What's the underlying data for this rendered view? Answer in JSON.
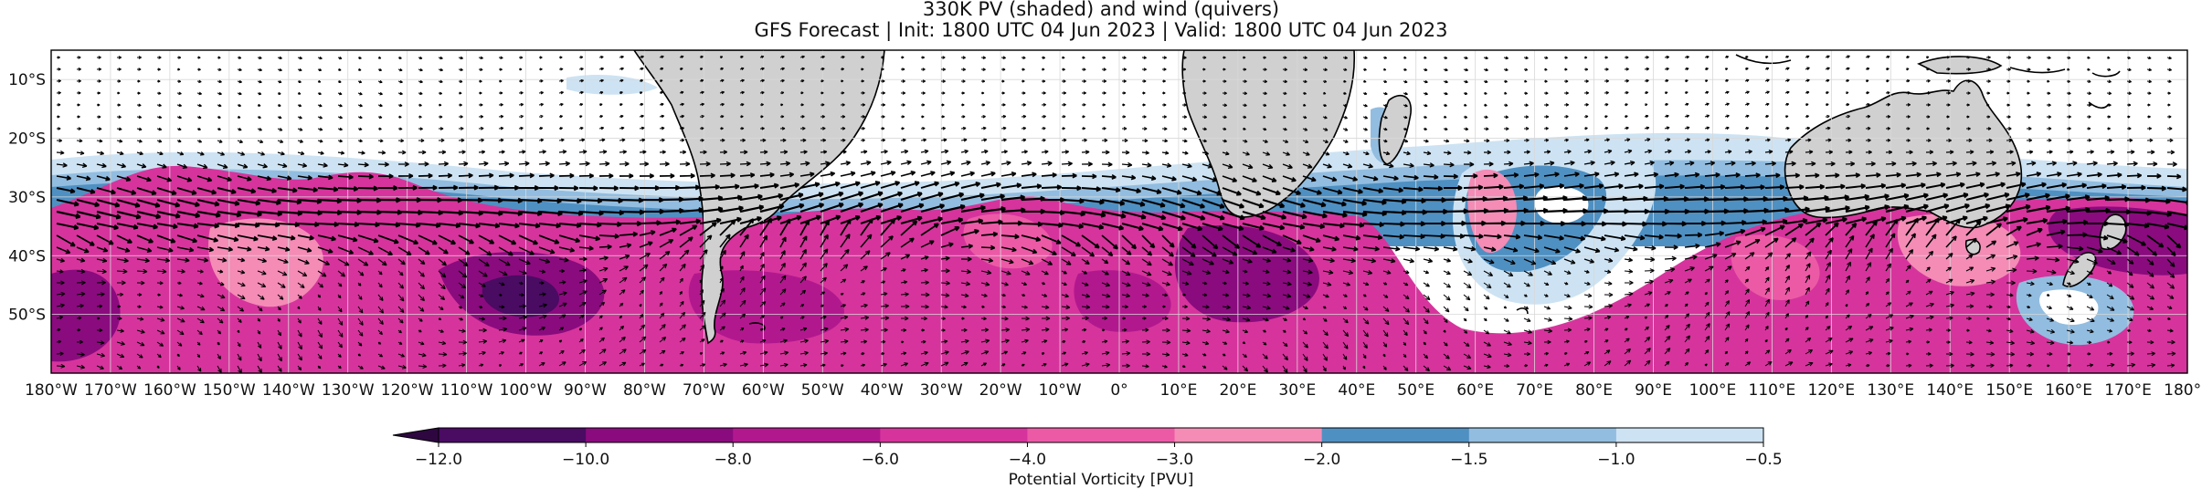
{
  "title": "330K PV (shaded) and wind (quivers)",
  "subtitle": "GFS Forecast | Init: 1800 UTC 04 Jun 2023 | Valid: 1800 UTC 04 Jun 2023",
  "map": {
    "lon_range": [
      -180,
      180
    ],
    "lat_range": [
      -60,
      -5
    ],
    "lon_ticks": [
      "180°W",
      "170°W",
      "160°W",
      "150°W",
      "140°W",
      "130°W",
      "120°W",
      "110°W",
      "100°W",
      "90°W",
      "80°W",
      "70°W",
      "60°W",
      "50°W",
      "40°W",
      "30°W",
      "20°W",
      "10°W",
      "0°",
      "10°E",
      "20°E",
      "30°E",
      "40°E",
      "50°E",
      "60°E",
      "70°E",
      "80°E",
      "90°E",
      "100°E",
      "110°E",
      "120°E",
      "130°E",
      "140°E",
      "150°E",
      "160°E",
      "170°E",
      "180°E"
    ],
    "lat_ticks": [
      "10°S",
      "20°S",
      "30°S",
      "40°S",
      "50°S"
    ],
    "land_color": "#d0d0d0",
    "vector_field": "wind (quivers)"
  },
  "colorbar": {
    "label": "Potential Vorticity [PVU]",
    "ticks": [
      "−12.0",
      "−10.0",
      "−8.0",
      "−6.0",
      "−4.0",
      "−3.0",
      "−2.0",
      "−1.5",
      "−1.0",
      "−0.5"
    ],
    "bins": [
      {
        "range": [
          -12,
          -10
        ],
        "color": "#4a0b63"
      },
      {
        "range": [
          -10,
          -8
        ],
        "color": "#8a0b7e"
      },
      {
        "range": [
          -8,
          -6
        ],
        "color": "#b2188e"
      },
      {
        "range": [
          -6,
          -4
        ],
        "color": "#d6349c"
      },
      {
        "range": [
          -4,
          -3
        ],
        "color": "#ec5aa6"
      },
      {
        "range": [
          -3,
          -2
        ],
        "color": "#f48cb6"
      },
      {
        "range": [
          -2,
          -1.5
        ],
        "color": "#4f90c2"
      },
      {
        "range": [
          -1.5,
          -1
        ],
        "color": "#92bde0"
      },
      {
        "range": [
          -1,
          -0.5
        ],
        "color": "#cde3f3"
      }
    ],
    "extend": "min"
  }
}
